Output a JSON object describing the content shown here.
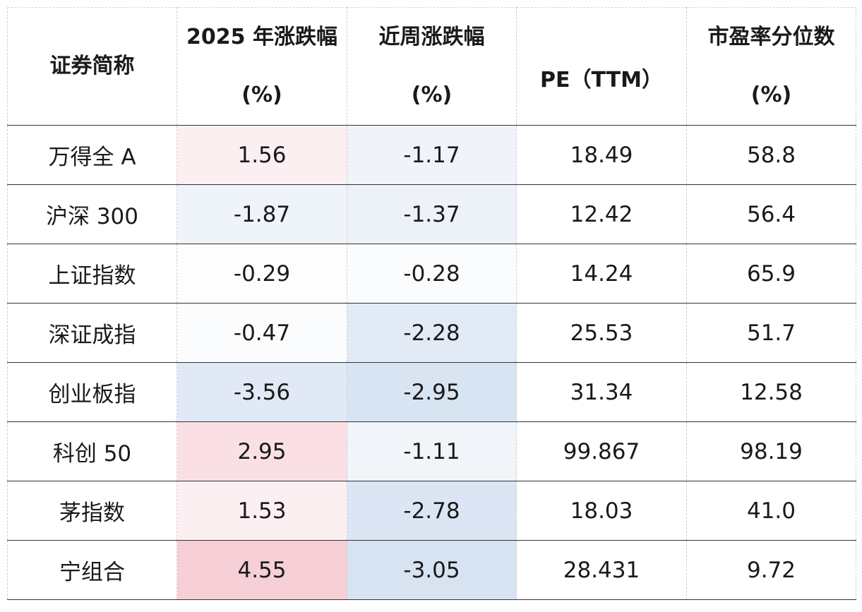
{
  "chart_data": {
    "type": "table",
    "columns": [
      {
        "key": "name",
        "lines": [
          "证券简称"
        ]
      },
      {
        "key": "ytd",
        "lines": [
          "2025 年涨跌幅",
          "(%)"
        ]
      },
      {
        "key": "week",
        "lines": [
          "近周涨跌幅",
          "(%)"
        ]
      },
      {
        "key": "pe",
        "lines": [
          "PE（TTM）"
        ]
      },
      {
        "key": "pct",
        "lines": [
          "市盈率分位数",
          "(%)"
        ]
      }
    ],
    "rows": [
      {
        "name": "万得全 A",
        "ytd": "1.56",
        "week": "-1.17",
        "pe": "18.49",
        "pct": "58.8"
      },
      {
        "name": "沪深 300",
        "ytd": "-1.87",
        "week": "-1.37",
        "pe": "12.42",
        "pct": "56.4"
      },
      {
        "name": "上证指数",
        "ytd": "-0.29",
        "week": "-0.28",
        "pe": "14.24",
        "pct": "65.9"
      },
      {
        "name": "深证成指",
        "ytd": "-0.47",
        "week": "-2.28",
        "pe": "25.53",
        "pct": "51.7"
      },
      {
        "name": "创业板指",
        "ytd": "-3.56",
        "week": "-2.95",
        "pe": "31.34",
        "pct": "12.58"
      },
      {
        "name": "科创 50",
        "ytd": "2.95",
        "week": "-1.11",
        "pe": "99.867",
        "pct": "98.19"
      },
      {
        "name": "茅指数",
        "ytd": "1.53",
        "week": "-2.78",
        "pe": "18.03",
        "pct": "41.0"
      },
      {
        "name": "宁组合",
        "ytd": "4.55",
        "week": "-3.05",
        "pe": "28.431",
        "pct": "9.72"
      }
    ],
    "heatmap_columns": [
      "ytd",
      "week"
    ],
    "colors": {
      "positive_max": "#f7cfd7",
      "negative_max": "#d8e3f2",
      "neutral": "#ffffff"
    }
  }
}
